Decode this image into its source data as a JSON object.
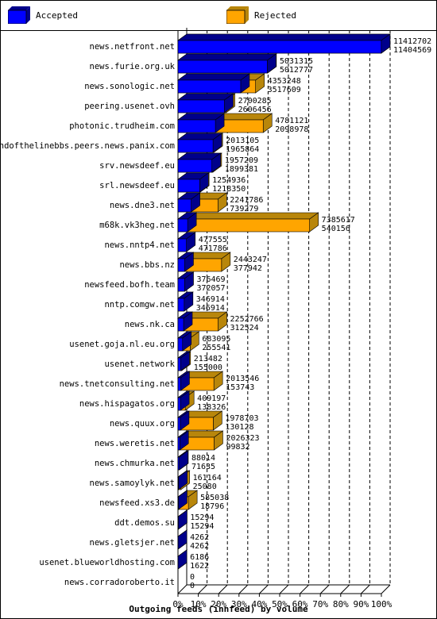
{
  "colors": {
    "accepted_front": "#0000ff",
    "accepted_top": "#00008b",
    "accepted_side": "#00008b",
    "rejected_front": "#ffa500",
    "rejected_top": "#b8860b",
    "rejected_side": "#b8860b",
    "grid": "#000000"
  },
  "legend": {
    "accepted": "Accepted",
    "rejected": "Rejected"
  },
  "chart_data": {
    "type": "bar",
    "orientation": "horizontal",
    "title": "Outgoing feeds (innfeed) by volume",
    "xlabel": "",
    "ylabel": "",
    "xlim": [
      0,
      100
    ],
    "x_ticks": [
      "0%",
      "10%",
      "20%",
      "30%",
      "40%",
      "50%",
      "60%",
      "70%",
      "80%",
      "90%",
      "100%"
    ],
    "grid": "dashed vertical at 10% intervals",
    "legend_position": "top",
    "scale_max": 11412702,
    "categories": [
      "news.netfront.net",
      "news.furie.org.uk",
      "news.sonologic.net",
      "peering.usenet.ovh",
      "photonic.trudheim.com",
      "endofthelinebbs.peers.news.panix.com",
      "srv.newsdeef.eu",
      "srl.newsdeef.eu",
      "news.dne3.net",
      "m68k.vk3heg.net",
      "news.nntp4.net",
      "news.bbs.nz",
      "newsfeed.bofh.team",
      "nntp.comgw.net",
      "news.nk.ca",
      "usenet.goja.nl.eu.org",
      "usenet.network",
      "news.tnetconsulting.net",
      "news.hispagatos.org",
      "news.quux.org",
      "news.weretis.net",
      "news.chmurka.net",
      "news.samoylyk.net",
      "newsfeed.xs3.de",
      "ddt.demos.su",
      "news.gletsjer.net",
      "usenet.blueworldhosting.com",
      "news.corradoroberto.it"
    ],
    "series": [
      {
        "name": "Accepted",
        "values": [
          11404569,
          5012777,
          3517609,
          2606456,
          2098978,
          1965864,
          1899381,
          1218350,
          739279,
          540156,
          471786,
          377942,
          372057,
          346914,
          312524,
          255541,
          155000,
          153743,
          138326,
          130128,
          99832,
          71635,
          25080,
          18796,
          15294,
          4262,
          1622,
          0
        ]
      },
      {
        "name": "Rejected",
        "values": [
          11412702,
          5031315,
          4353248,
          2700285,
          4781121,
          2013105,
          1957209,
          1254936,
          2241786,
          7385617,
          477555,
          2443247,
          376469,
          346914,
          2252766,
          683095,
          213482,
          2013546,
          409197,
          1978703,
          2026323,
          88014,
          161164,
          585038,
          15294,
          4262,
          6186,
          0
        ]
      }
    ],
    "label_top": [
      "11412702",
      "5031315",
      "4353248",
      "2700285",
      "4781121",
      "2013105",
      "1957209",
      "1254936",
      "2241786",
      "7385617",
      "477555",
      "2443247",
      "376469",
      "346914",
      "2252766",
      "683095",
      "213482",
      "2013546",
      "409197",
      "1978703",
      "2026323",
      "88014",
      "161164",
      "585038",
      "15294",
      "4262",
      "6186",
      "0"
    ],
    "label_bottom": [
      "11404569",
      "5012777",
      "3517609",
      "2606456",
      "2098978",
      "1965864",
      "1899381",
      "1218350",
      "739279",
      "540156",
      "471786",
      "377942",
      "372057",
      "346914",
      "312524",
      "255541",
      "155000",
      "153743",
      "138326",
      "130128",
      "99832",
      "71635",
      "25080",
      "18796",
      "15294",
      "4262",
      "1622",
      "0"
    ]
  }
}
